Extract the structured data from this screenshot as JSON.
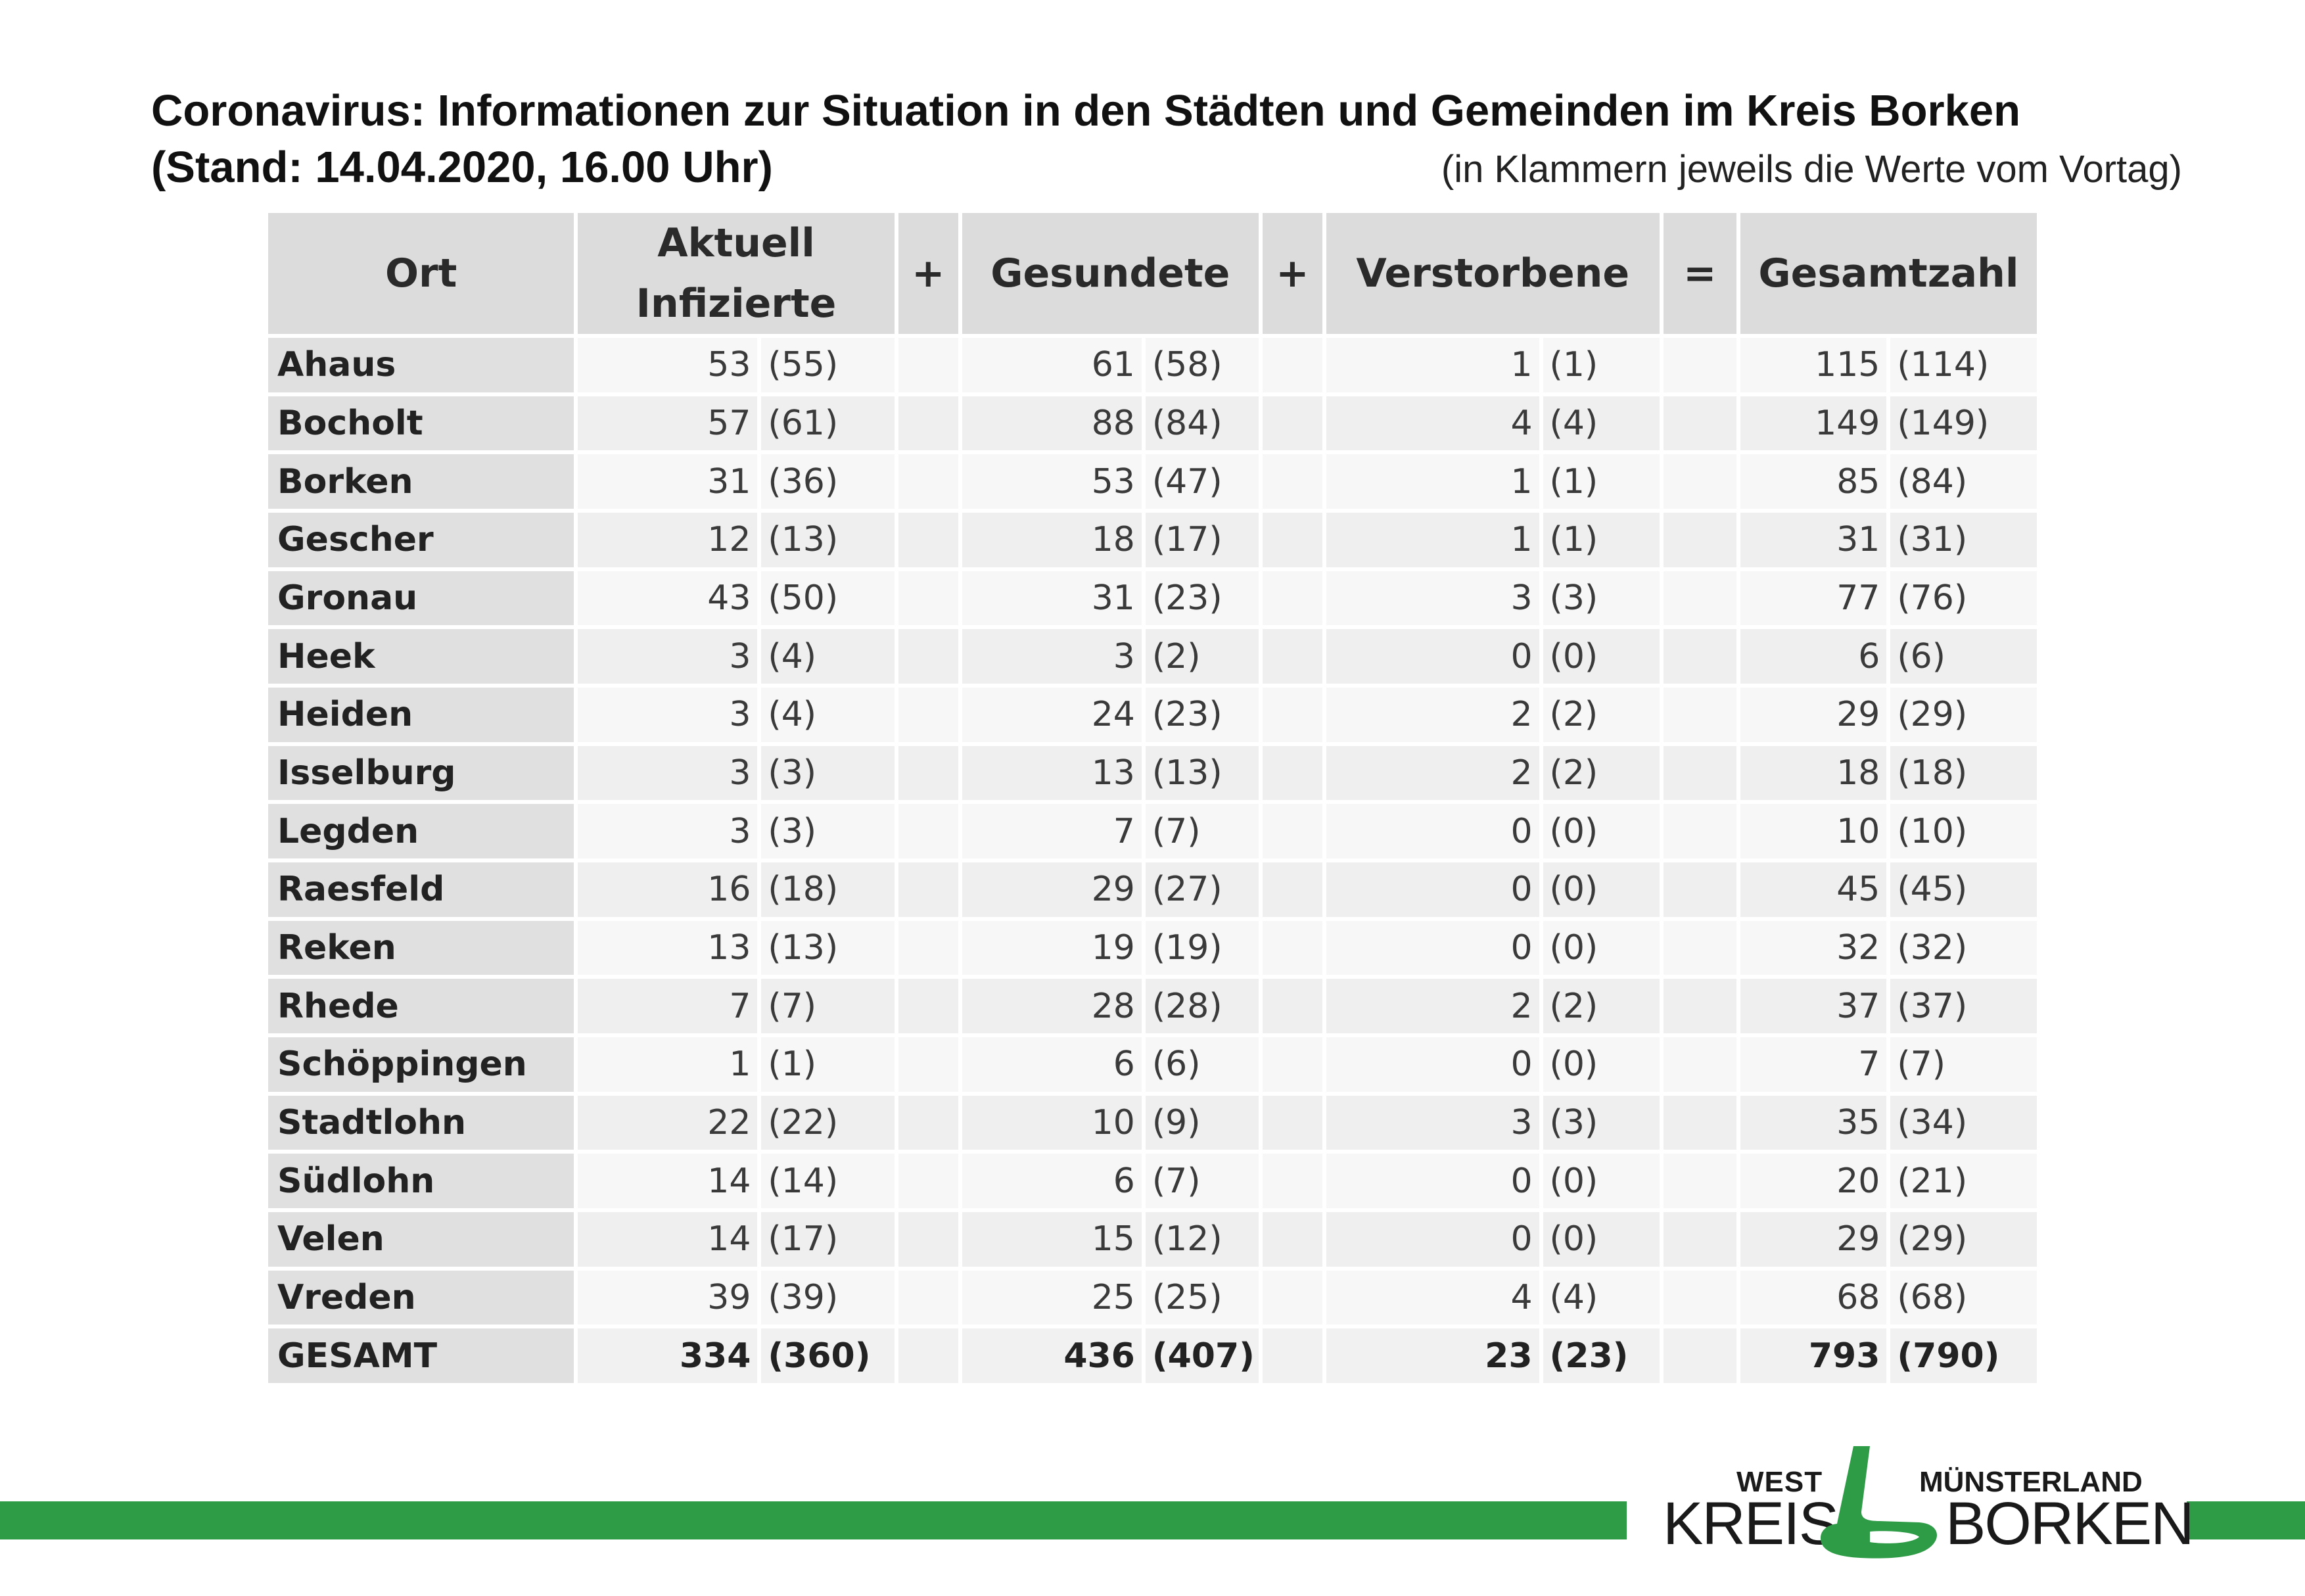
{
  "title": {
    "line1": "Coronavirus: Informationen zur Situation in den Städten und Gemeinden im Kreis Borken",
    "line2": "(Stand: 14.04.2020, 16.00 Uhr)",
    "note": "(in Klammern jeweils die Werte vom Vortag)"
  },
  "table": {
    "headers": {
      "ort": "Ort",
      "infiziert_1": "Aktuell",
      "infiziert_2": "Infizierte",
      "plus1": "+",
      "gesundete": "Gesundete",
      "plus2": "+",
      "verstorbene": "Verstorbene",
      "equals": "=",
      "gesamtzahl": "Gesamtzahl"
    },
    "rows": [
      {
        "ort": "Ahaus",
        "inf": "53",
        "inf_prev": "(55)",
        "ges": "61",
        "ges_prev": "(58)",
        "ver": "1",
        "ver_prev": "(1)",
        "tot": "115",
        "tot_prev": "(114)"
      },
      {
        "ort": "Bocholt",
        "inf": "57",
        "inf_prev": "(61)",
        "ges": "88",
        "ges_prev": "(84)",
        "ver": "4",
        "ver_prev": "(4)",
        "tot": "149",
        "tot_prev": "(149)"
      },
      {
        "ort": "Borken",
        "inf": "31",
        "inf_prev": "(36)",
        "ges": "53",
        "ges_prev": "(47)",
        "ver": "1",
        "ver_prev": "(1)",
        "tot": "85",
        "tot_prev": "(84)"
      },
      {
        "ort": "Gescher",
        "inf": "12",
        "inf_prev": "(13)",
        "ges": "18",
        "ges_prev": "(17)",
        "ver": "1",
        "ver_prev": "(1)",
        "tot": "31",
        "tot_prev": "(31)"
      },
      {
        "ort": "Gronau",
        "inf": "43",
        "inf_prev": "(50)",
        "ges": "31",
        "ges_prev": "(23)",
        "ver": "3",
        "ver_prev": "(3)",
        "tot": "77",
        "tot_prev": "(76)"
      },
      {
        "ort": "Heek",
        "inf": "3",
        "inf_prev": "(4)",
        "ges": "3",
        "ges_prev": "(2)",
        "ver": "0",
        "ver_prev": "(0)",
        "tot": "6",
        "tot_prev": "(6)"
      },
      {
        "ort": "Heiden",
        "inf": "3",
        "inf_prev": "(4)",
        "ges": "24",
        "ges_prev": "(23)",
        "ver": "2",
        "ver_prev": "(2)",
        "tot": "29",
        "tot_prev": "(29)"
      },
      {
        "ort": "Isselburg",
        "inf": "3",
        "inf_prev": "(3)",
        "ges": "13",
        "ges_prev": "(13)",
        "ver": "2",
        "ver_prev": "(2)",
        "tot": "18",
        "tot_prev": "(18)"
      },
      {
        "ort": "Legden",
        "inf": "3",
        "inf_prev": "(3)",
        "ges": "7",
        "ges_prev": "(7)",
        "ver": "0",
        "ver_prev": "(0)",
        "tot": "10",
        "tot_prev": "(10)"
      },
      {
        "ort": "Raesfeld",
        "inf": "16",
        "inf_prev": "(18)",
        "ges": "29",
        "ges_prev": "(27)",
        "ver": "0",
        "ver_prev": "(0)",
        "tot": "45",
        "tot_prev": "(45)"
      },
      {
        "ort": "Reken",
        "inf": "13",
        "inf_prev": "(13)",
        "ges": "19",
        "ges_prev": "(19)",
        "ver": "0",
        "ver_prev": "(0)",
        "tot": "32",
        "tot_prev": "(32)"
      },
      {
        "ort": "Rhede",
        "inf": "7",
        "inf_prev": "(7)",
        "ges": "28",
        "ges_prev": "(28)",
        "ver": "2",
        "ver_prev": "(2)",
        "tot": "37",
        "tot_prev": "(37)"
      },
      {
        "ort": "Schöppingen",
        "inf": "1",
        "inf_prev": "(1)",
        "ges": "6",
        "ges_prev": "(6)",
        "ver": "0",
        "ver_prev": "(0)",
        "tot": "7",
        "tot_prev": "(7)"
      },
      {
        "ort": "Stadtlohn",
        "inf": "22",
        "inf_prev": "(22)",
        "ges": "10",
        "ges_prev": "(9)",
        "ver": "3",
        "ver_prev": "(3)",
        "tot": "35",
        "tot_prev": "(34)"
      },
      {
        "ort": "Südlohn",
        "inf": "14",
        "inf_prev": "(14)",
        "ges": "6",
        "ges_prev": "(7)",
        "ver": "0",
        "ver_prev": "(0)",
        "tot": "20",
        "tot_prev": "(21)"
      },
      {
        "ort": "Velen",
        "inf": "14",
        "inf_prev": "(17)",
        "ges": "15",
        "ges_prev": "(12)",
        "ver": "0",
        "ver_prev": "(0)",
        "tot": "29",
        "tot_prev": "(29)"
      },
      {
        "ort": "Vreden",
        "inf": "39",
        "inf_prev": "(39)",
        "ges": "25",
        "ges_prev": "(25)",
        "ver": "4",
        "ver_prev": "(4)",
        "tot": "68",
        "tot_prev": "(68)"
      }
    ],
    "total": {
      "ort": "GESAMT",
      "inf": "334",
      "inf_prev": "(360)",
      "ges": "436",
      "ges_prev": "(407)",
      "ver": "23",
      "ver_prev": "(23)",
      "tot": "793",
      "tot_prev": "(790)"
    }
  },
  "logo": {
    "west": "WEST",
    "muensterland": "MÜNSTERLAND",
    "kreis": "KREIS",
    "borken": "BORKEN"
  },
  "colors": {
    "brand_green": "#2e9c47"
  }
}
